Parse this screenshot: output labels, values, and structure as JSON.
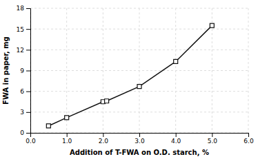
{
  "chart_data": {
    "type": "line",
    "x": [
      0.5,
      1.0,
      2.0,
      2.1,
      3.0,
      4.0,
      5.0
    ],
    "values": [
      1.0,
      2.2,
      4.5,
      4.6,
      6.7,
      10.3,
      15.5
    ],
    "xlabel": "Addition of T-FWA on O.D. starch, %",
    "ylabel": "FWA in paper, mg",
    "xlim": [
      0.0,
      6.0
    ],
    "ylim": [
      0,
      18
    ],
    "xticks": [
      {
        "value": 0.0,
        "label": "0.0"
      },
      {
        "value": 1.0,
        "label": "1.0"
      },
      {
        "value": 2.0,
        "label": "2.0"
      },
      {
        "value": 3.0,
        "label": "3.0"
      },
      {
        "value": 4.0,
        "label": "4.0"
      },
      {
        "value": 5.0,
        "label": "5.0"
      },
      {
        "value": 6.0,
        "label": "6.0"
      }
    ],
    "yticks": [
      0,
      3,
      6,
      9,
      12,
      15,
      18
    ],
    "grid": true,
    "color": "#111111",
    "marker": "square"
  }
}
